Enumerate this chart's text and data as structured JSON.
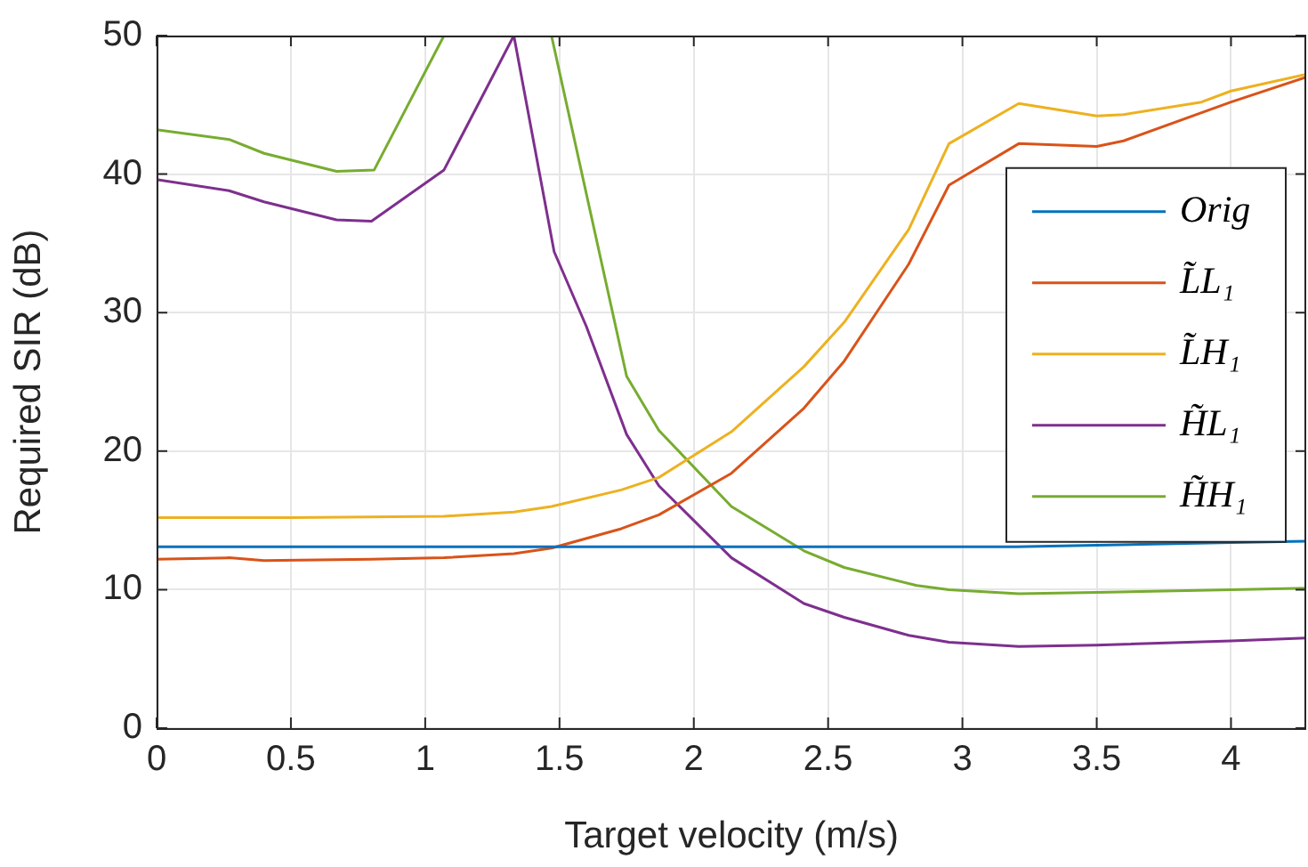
{
  "chart_data": {
    "type": "line",
    "xlabel": "Target velocity (m/s)",
    "ylabel": "Required SIR (dB)",
    "xlim": [
      0,
      4.28
    ],
    "xticks": [
      0,
      0.5,
      1,
      1.5,
      2,
      2.5,
      3,
      3.5,
      4
    ],
    "ylim": [
      0,
      50
    ],
    "yticks": [
      0,
      10,
      20,
      30,
      40,
      50
    ],
    "grid": true,
    "legend": "right",
    "marker": "none",
    "line_style": "solid",
    "series": [
      {
        "name": "Orig",
        "color": "#0072bd",
        "x": [
          0,
          1,
          2,
          3.2,
          4,
          4.28
        ],
        "values": [
          13.1,
          13.1,
          13.1,
          13.1,
          13.4,
          13.5
        ]
      },
      {
        "name": "L̃L₁",
        "color": "#d95319",
        "x": [
          0,
          0.27,
          0.4,
          0.8,
          1.07,
          1.33,
          1.47,
          1.73,
          1.87,
          2.14,
          2.41,
          2.56,
          2.8,
          2.95,
          3.21,
          3.5,
          3.6,
          4,
          4.28
        ],
        "values": [
          12.2,
          12.3,
          12.1,
          12.2,
          12.3,
          12.6,
          13,
          14.4,
          15.4,
          18.4,
          23.1,
          26.5,
          33.5,
          39.2,
          42.2,
          42,
          42.4,
          45.2,
          47
        ]
      },
      {
        "name": "L̃H₁",
        "color": "#edb120",
        "x": [
          0,
          0.5,
          1.07,
          1.33,
          1.47,
          1.73,
          1.87,
          2.14,
          2.41,
          2.56,
          2.8,
          2.95,
          3.21,
          3.5,
          3.6,
          3.89,
          4,
          4.28
        ],
        "values": [
          15.2,
          15.2,
          15.3,
          15.6,
          16,
          17.2,
          18.1,
          21.4,
          26.1,
          29.3,
          36,
          42.2,
          45.1,
          44.2,
          44.3,
          45.2,
          46,
          47.2
        ]
      },
      {
        "name": "H̃L₁",
        "color": "#7e2f8e",
        "x": [
          0,
          0.27,
          0.4,
          0.67,
          0.8,
          1.07,
          1.33,
          1.48,
          1.6,
          1.75,
          1.87,
          2.14,
          2.41,
          2.56,
          2.8,
          2.95,
          3.21,
          3.5,
          4,
          4.28
        ],
        "values": [
          39.6,
          38.8,
          38,
          36.7,
          36.6,
          40.3,
          50,
          34.4,
          29,
          21.2,
          17.5,
          12.3,
          9,
          8,
          6.7,
          6.2,
          5.9,
          6,
          6.3,
          6.5
        ]
      },
      {
        "name": "H̃H₁",
        "color": "#77ac30",
        "x": [
          0,
          0.27,
          0.4,
          0.67,
          0.81,
          1.07,
          1.47,
          1.75,
          1.87,
          2.14,
          2.41,
          2.56,
          2.83,
          2.95,
          3.21,
          3.5,
          4,
          4.28
        ],
        "values": [
          43.2,
          42.5,
          41.5,
          40.2,
          40.3,
          50,
          50,
          25.4,
          21.5,
          16,
          12.8,
          11.6,
          10.3,
          10,
          9.7,
          9.8,
          10,
          10.1
        ]
      }
    ]
  }
}
